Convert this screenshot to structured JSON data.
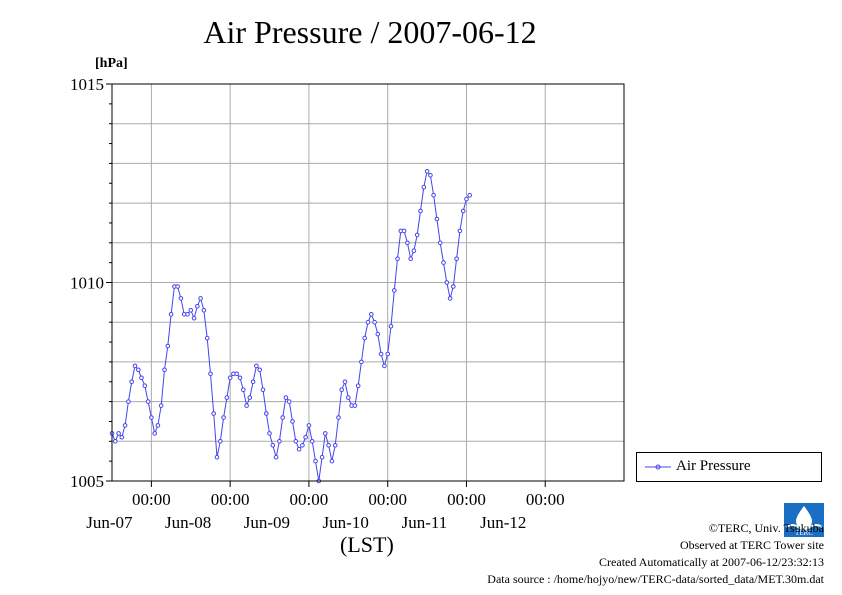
{
  "title": "Air Pressure / 2007-06-12",
  "unit_label": "[hPa]",
  "credits": {
    "line1": "©TERC, Univ. Tsukuba",
    "line2": "Observed at TERC Tower site",
    "line3": "Created Automatically at 2007-06-12/23:32:13",
    "line4": "Data source : /home/hojyo/new/TERC-data/sorted_data/MET.30m.dat"
  },
  "logo_text": "TERC",
  "colors": {
    "series": "#4444ee",
    "grid": "#aaaaaa",
    "axis": "#000000"
  },
  "chart_data": {
    "type": "line",
    "title": "Air Pressure / 2007-06-12",
    "xlabel": "(LST)",
    "ylabel": "[hPa]",
    "xlim": [
      "2007-06-06 12:00",
      "2007-06-12 24:00"
    ],
    "ylim": [
      1005,
      1015
    ],
    "grid": true,
    "legend": "right",
    "y_ticks": [
      "1005",
      "1010",
      "1015"
    ],
    "x_ticks": [
      {
        "time": "2007-06-07 00:00",
        "label": "00:00",
        "day": "Jun-07"
      },
      {
        "time": "2007-06-08 00:00",
        "label": "00:00",
        "day": "Jun-08"
      },
      {
        "time": "2007-06-09 00:00",
        "label": "00:00",
        "day": "Jun-09"
      },
      {
        "time": "2007-06-10 00:00",
        "label": "00:00",
        "day": "Jun-10"
      },
      {
        "time": "2007-06-11 00:00",
        "label": "00:00",
        "day": "Jun-11"
      },
      {
        "time": "2007-06-12 00:00",
        "label": "00:00",
        "day": "Jun-12"
      }
    ],
    "series": [
      {
        "name": "Air Pressure",
        "interval": "1h",
        "points": [
          [
            "2007-06-06 12:00",
            1006.2
          ],
          [
            "2007-06-06 13:00",
            1006.0
          ],
          [
            "2007-06-06 14:00",
            1006.2
          ],
          [
            "2007-06-06 15:00",
            1006.1
          ],
          [
            "2007-06-06 16:00",
            1006.4
          ],
          [
            "2007-06-06 17:00",
            1007.0
          ],
          [
            "2007-06-06 18:00",
            1007.5
          ],
          [
            "2007-06-06 19:00",
            1007.9
          ],
          [
            "2007-06-06 20:00",
            1007.8
          ],
          [
            "2007-06-06 21:00",
            1007.6
          ],
          [
            "2007-06-06 22:00",
            1007.4
          ],
          [
            "2007-06-06 23:00",
            1007.0
          ],
          [
            "2007-06-07 00:00",
            1006.6
          ],
          [
            "2007-06-07 01:00",
            1006.2
          ],
          [
            "2007-06-07 02:00",
            1006.4
          ],
          [
            "2007-06-07 03:00",
            1006.9
          ],
          [
            "2007-06-07 04:00",
            1007.8
          ],
          [
            "2007-06-07 05:00",
            1008.4
          ],
          [
            "2007-06-07 06:00",
            1009.2
          ],
          [
            "2007-06-07 07:00",
            1009.9
          ],
          [
            "2007-06-07 08:00",
            1009.9
          ],
          [
            "2007-06-07 09:00",
            1009.6
          ],
          [
            "2007-06-07 10:00",
            1009.2
          ],
          [
            "2007-06-07 11:00",
            1009.2
          ],
          [
            "2007-06-07 12:00",
            1009.3
          ],
          [
            "2007-06-07 13:00",
            1009.1
          ],
          [
            "2007-06-07 14:00",
            1009.4
          ],
          [
            "2007-06-07 15:00",
            1009.6
          ],
          [
            "2007-06-07 16:00",
            1009.3
          ],
          [
            "2007-06-07 17:00",
            1008.6
          ],
          [
            "2007-06-07 18:00",
            1007.7
          ],
          [
            "2007-06-07 19:00",
            1006.7
          ],
          [
            "2007-06-07 20:00",
            1005.6
          ],
          [
            "2007-06-07 21:00",
            1006.0
          ],
          [
            "2007-06-07 22:00",
            1006.6
          ],
          [
            "2007-06-07 23:00",
            1007.1
          ],
          [
            "2007-06-08 00:00",
            1007.6
          ],
          [
            "2007-06-08 01:00",
            1007.7
          ],
          [
            "2007-06-08 02:00",
            1007.7
          ],
          [
            "2007-06-08 03:00",
            1007.6
          ],
          [
            "2007-06-08 04:00",
            1007.3
          ],
          [
            "2007-06-08 05:00",
            1006.9
          ],
          [
            "2007-06-08 06:00",
            1007.1
          ],
          [
            "2007-06-08 07:00",
            1007.5
          ],
          [
            "2007-06-08 08:00",
            1007.9
          ],
          [
            "2007-06-08 09:00",
            1007.8
          ],
          [
            "2007-06-08 10:00",
            1007.3
          ],
          [
            "2007-06-08 11:00",
            1006.7
          ],
          [
            "2007-06-08 12:00",
            1006.2
          ],
          [
            "2007-06-08 13:00",
            1005.9
          ],
          [
            "2007-06-08 14:00",
            1005.6
          ],
          [
            "2007-06-08 15:00",
            1006.0
          ],
          [
            "2007-06-08 16:00",
            1006.6
          ],
          [
            "2007-06-08 17:00",
            1007.1
          ],
          [
            "2007-06-08 18:00",
            1007.0
          ],
          [
            "2007-06-08 19:00",
            1006.5
          ],
          [
            "2007-06-08 20:00",
            1006.0
          ],
          [
            "2007-06-08 21:00",
            1005.8
          ],
          [
            "2007-06-08 22:00",
            1005.9
          ],
          [
            "2007-06-08 23:00",
            1006.1
          ],
          [
            "2007-06-09 00:00",
            1006.4
          ],
          [
            "2007-06-09 01:00",
            1006.0
          ],
          [
            "2007-06-09 02:00",
            1005.5
          ],
          [
            "2007-06-09 03:00",
            1005.0
          ],
          [
            "2007-06-09 04:00",
            1005.6
          ],
          [
            "2007-06-09 05:00",
            1006.2
          ],
          [
            "2007-06-09 06:00",
            1005.9
          ],
          [
            "2007-06-09 07:00",
            1005.5
          ],
          [
            "2007-06-09 08:00",
            1005.9
          ],
          [
            "2007-06-09 09:00",
            1006.6
          ],
          [
            "2007-06-09 10:00",
            1007.3
          ],
          [
            "2007-06-09 11:00",
            1007.5
          ],
          [
            "2007-06-09 12:00",
            1007.1
          ],
          [
            "2007-06-09 13:00",
            1006.9
          ],
          [
            "2007-06-09 14:00",
            1006.9
          ],
          [
            "2007-06-09 15:00",
            1007.4
          ],
          [
            "2007-06-09 16:00",
            1008.0
          ],
          [
            "2007-06-09 17:00",
            1008.6
          ],
          [
            "2007-06-09 18:00",
            1009.0
          ],
          [
            "2007-06-09 19:00",
            1009.2
          ],
          [
            "2007-06-09 20:00",
            1009.0
          ],
          [
            "2007-06-09 21:00",
            1008.7
          ],
          [
            "2007-06-09 22:00",
            1008.2
          ],
          [
            "2007-06-09 23:00",
            1007.9
          ],
          [
            "2007-06-10 00:00",
            1008.2
          ],
          [
            "2007-06-10 01:00",
            1008.9
          ],
          [
            "2007-06-10 02:00",
            1009.8
          ],
          [
            "2007-06-10 03:00",
            1010.6
          ],
          [
            "2007-06-10 04:00",
            1011.3
          ],
          [
            "2007-06-10 05:00",
            1011.3
          ],
          [
            "2007-06-10 06:00",
            1011.0
          ],
          [
            "2007-06-10 07:00",
            1010.6
          ],
          [
            "2007-06-10 08:00",
            1010.8
          ],
          [
            "2007-06-10 09:00",
            1011.2
          ],
          [
            "2007-06-10 10:00",
            1011.8
          ],
          [
            "2007-06-10 11:00",
            1012.4
          ],
          [
            "2007-06-10 12:00",
            1012.8
          ],
          [
            "2007-06-10 13:00",
            1012.7
          ],
          [
            "2007-06-10 14:00",
            1012.2
          ],
          [
            "2007-06-10 15:00",
            1011.6
          ],
          [
            "2007-06-10 16:00",
            1011.0
          ],
          [
            "2007-06-10 17:00",
            1010.5
          ],
          [
            "2007-06-10 18:00",
            1010.0
          ],
          [
            "2007-06-10 19:00",
            1009.6
          ],
          [
            "2007-06-10 20:00",
            1009.9
          ],
          [
            "2007-06-10 21:00",
            1010.6
          ],
          [
            "2007-06-10 22:00",
            1011.3
          ],
          [
            "2007-06-10 23:00",
            1011.8
          ],
          [
            "2007-06-11 00:00",
            1012.1
          ],
          [
            "2007-06-11 01:00",
            1012.2
          ]
        ]
      }
    ]
  }
}
